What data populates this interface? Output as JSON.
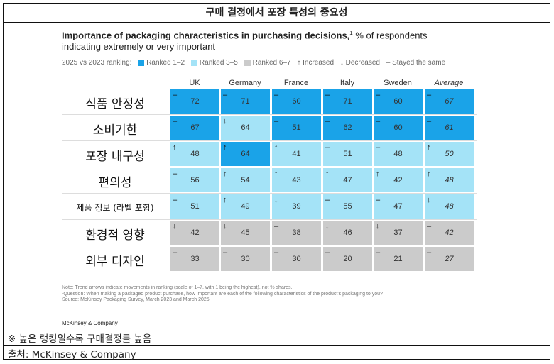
{
  "header": {
    "title": "구매 결정에서 포장 특성의 중요성"
  },
  "chart_data": {
    "type": "table",
    "title_bold": "Importance of packaging characteristics in purchasing decisions,",
    "title_sup": "1",
    "title_rest": " % of respondents indicating extremely or very important",
    "legend": {
      "caption": "2025 vs 2023 ranking:",
      "ranked_1_2": "Ranked 1–2",
      "ranked_3_5": "Ranked 3–5",
      "ranked_6_7": "Ranked 6–7",
      "increased": "↑ Increased",
      "decreased": "↓ Decreased",
      "stayed": "– Stayed the same"
    },
    "colors": {
      "ranked_1_2": "#1aa3e8",
      "ranked_3_5": "#a4e3f7",
      "ranked_6_7": "#cbcbcb"
    },
    "columns": [
      "UK",
      "Germany",
      "France",
      "Italy",
      "Sweden",
      "Average"
    ],
    "rows": [
      {
        "label": "식품 안정성",
        "cells": [
          {
            "v": "72",
            "t": "–",
            "r": "ranked_1_2"
          },
          {
            "v": "71",
            "t": "–",
            "r": "ranked_1_2"
          },
          {
            "v": "60",
            "t": "–",
            "r": "ranked_1_2"
          },
          {
            "v": "71",
            "t": "–",
            "r": "ranked_1_2"
          },
          {
            "v": "60",
            "t": "–",
            "r": "ranked_1_2"
          },
          {
            "v": "67",
            "t": "–",
            "r": "ranked_1_2"
          }
        ]
      },
      {
        "label": "소비기한",
        "cells": [
          {
            "v": "67",
            "t": "–",
            "r": "ranked_1_2"
          },
          {
            "v": "64",
            "t": "↓",
            "r": "ranked_3_5"
          },
          {
            "v": "51",
            "t": "–",
            "r": "ranked_1_2"
          },
          {
            "v": "62",
            "t": "–",
            "r": "ranked_1_2"
          },
          {
            "v": "60",
            "t": "–",
            "r": "ranked_1_2"
          },
          {
            "v": "61",
            "t": "–",
            "r": "ranked_1_2"
          }
        ]
      },
      {
        "label": "포장 내구성",
        "cells": [
          {
            "v": "48",
            "t": "↑",
            "r": "ranked_3_5"
          },
          {
            "v": "64",
            "t": "↑",
            "r": "ranked_1_2"
          },
          {
            "v": "41",
            "t": "↑",
            "r": "ranked_3_5"
          },
          {
            "v": "51",
            "t": "–",
            "r": "ranked_3_5"
          },
          {
            "v": "48",
            "t": "–",
            "r": "ranked_3_5"
          },
          {
            "v": "50",
            "t": "↑",
            "r": "ranked_3_5"
          }
        ]
      },
      {
        "label": "편의성",
        "cells": [
          {
            "v": "56",
            "t": "–",
            "r": "ranked_3_5"
          },
          {
            "v": "54",
            "t": "↑",
            "r": "ranked_3_5"
          },
          {
            "v": "43",
            "t": "↑",
            "r": "ranked_3_5"
          },
          {
            "v": "47",
            "t": "↑",
            "r": "ranked_3_5"
          },
          {
            "v": "42",
            "t": "↑",
            "r": "ranked_3_5"
          },
          {
            "v": "48",
            "t": "↑",
            "r": "ranked_3_5"
          }
        ]
      },
      {
        "label": "제품 정보 (라벨 포함)",
        "cells": [
          {
            "v": "51",
            "t": "–",
            "r": "ranked_3_5"
          },
          {
            "v": "49",
            "t": "↑",
            "r": "ranked_3_5"
          },
          {
            "v": "39",
            "t": "↓",
            "r": "ranked_3_5"
          },
          {
            "v": "55",
            "t": "–",
            "r": "ranked_3_5"
          },
          {
            "v": "47",
            "t": "–",
            "r": "ranked_3_5"
          },
          {
            "v": "48",
            "t": "↓",
            "r": "ranked_3_5"
          }
        ]
      },
      {
        "label": "환경적 영향",
        "cells": [
          {
            "v": "42",
            "t": "↓",
            "r": "ranked_6_7"
          },
          {
            "v": "45",
            "t": "↓",
            "r": "ranked_6_7"
          },
          {
            "v": "38",
            "t": "–",
            "r": "ranked_6_7"
          },
          {
            "v": "46",
            "t": "↓",
            "r": "ranked_6_7"
          },
          {
            "v": "37",
            "t": "↓",
            "r": "ranked_6_7"
          },
          {
            "v": "42",
            "t": "–",
            "r": "ranked_6_7"
          }
        ]
      },
      {
        "label": "외부 디자인",
        "cells": [
          {
            "v": "33",
            "t": "–",
            "r": "ranked_6_7"
          },
          {
            "v": "30",
            "t": "–",
            "r": "ranked_6_7"
          },
          {
            "v": "30",
            "t": "–",
            "r": "ranked_6_7"
          },
          {
            "v": "20",
            "t": "–",
            "r": "ranked_6_7"
          },
          {
            "v": "21",
            "t": "–",
            "r": "ranked_6_7"
          },
          {
            "v": "27",
            "t": "–",
            "r": "ranked_6_7"
          }
        ]
      }
    ],
    "notes": [
      "Note: Trend arrows indicate movements in ranking (scale of 1–7, with 1 being the highest), not % shares.",
      "¹Question: When making a packaged product purchase, how important are each of the following characteristics of the product's packaging to you?",
      "Source: McKinsey Packaging Survey, March 2023 and March 2025"
    ],
    "brand": "McKinsey & Company"
  },
  "footer": {
    "note": "※ 높은 랭킹일수록 구매결정를 높음",
    "source": "출처: McKinsey & Company"
  }
}
